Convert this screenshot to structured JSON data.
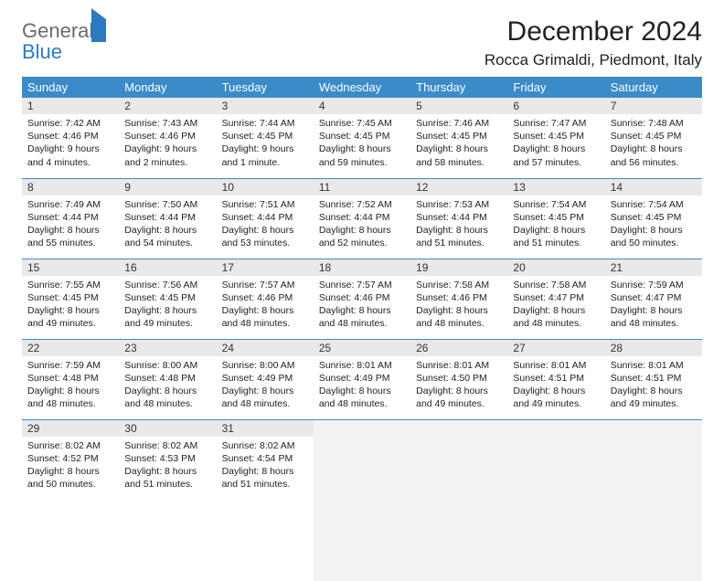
{
  "brand": {
    "word1": "General",
    "word2": "Blue"
  },
  "title": "December 2024",
  "location": "Rocca Grimaldi, Piedmont, Italy",
  "colors": {
    "header_bg": "#3b8bc8",
    "header_fg": "#ffffff",
    "daynum_bg": "#e9e9e9",
    "row_divider": "#3b8bc8",
    "logo_gray": "#6b6b6b",
    "logo_blue": "#2d7ac0",
    "page_bg": "#ffffff"
  },
  "typography": {
    "title_fontsize": 30,
    "location_fontsize": 17,
    "weekday_fontsize": 13,
    "daynum_fontsize": 12,
    "body_fontsize": 10.5
  },
  "weekdays": [
    "Sunday",
    "Monday",
    "Tuesday",
    "Wednesday",
    "Thursday",
    "Friday",
    "Saturday"
  ],
  "weeks": [
    [
      {
        "n": "1",
        "sr": "Sunrise: 7:42 AM",
        "ss": "Sunset: 4:46 PM",
        "dl": "Daylight: 9 hours and 4 minutes."
      },
      {
        "n": "2",
        "sr": "Sunrise: 7:43 AM",
        "ss": "Sunset: 4:46 PM",
        "dl": "Daylight: 9 hours and 2 minutes."
      },
      {
        "n": "3",
        "sr": "Sunrise: 7:44 AM",
        "ss": "Sunset: 4:45 PM",
        "dl": "Daylight: 9 hours and 1 minute."
      },
      {
        "n": "4",
        "sr": "Sunrise: 7:45 AM",
        "ss": "Sunset: 4:45 PM",
        "dl": "Daylight: 8 hours and 59 minutes."
      },
      {
        "n": "5",
        "sr": "Sunrise: 7:46 AM",
        "ss": "Sunset: 4:45 PM",
        "dl": "Daylight: 8 hours and 58 minutes."
      },
      {
        "n": "6",
        "sr": "Sunrise: 7:47 AM",
        "ss": "Sunset: 4:45 PM",
        "dl": "Daylight: 8 hours and 57 minutes."
      },
      {
        "n": "7",
        "sr": "Sunrise: 7:48 AM",
        "ss": "Sunset: 4:45 PM",
        "dl": "Daylight: 8 hours and 56 minutes."
      }
    ],
    [
      {
        "n": "8",
        "sr": "Sunrise: 7:49 AM",
        "ss": "Sunset: 4:44 PM",
        "dl": "Daylight: 8 hours and 55 minutes."
      },
      {
        "n": "9",
        "sr": "Sunrise: 7:50 AM",
        "ss": "Sunset: 4:44 PM",
        "dl": "Daylight: 8 hours and 54 minutes."
      },
      {
        "n": "10",
        "sr": "Sunrise: 7:51 AM",
        "ss": "Sunset: 4:44 PM",
        "dl": "Daylight: 8 hours and 53 minutes."
      },
      {
        "n": "11",
        "sr": "Sunrise: 7:52 AM",
        "ss": "Sunset: 4:44 PM",
        "dl": "Daylight: 8 hours and 52 minutes."
      },
      {
        "n": "12",
        "sr": "Sunrise: 7:53 AM",
        "ss": "Sunset: 4:44 PM",
        "dl": "Daylight: 8 hours and 51 minutes."
      },
      {
        "n": "13",
        "sr": "Sunrise: 7:54 AM",
        "ss": "Sunset: 4:45 PM",
        "dl": "Daylight: 8 hours and 51 minutes."
      },
      {
        "n": "14",
        "sr": "Sunrise: 7:54 AM",
        "ss": "Sunset: 4:45 PM",
        "dl": "Daylight: 8 hours and 50 minutes."
      }
    ],
    [
      {
        "n": "15",
        "sr": "Sunrise: 7:55 AM",
        "ss": "Sunset: 4:45 PM",
        "dl": "Daylight: 8 hours and 49 minutes."
      },
      {
        "n": "16",
        "sr": "Sunrise: 7:56 AM",
        "ss": "Sunset: 4:45 PM",
        "dl": "Daylight: 8 hours and 49 minutes."
      },
      {
        "n": "17",
        "sr": "Sunrise: 7:57 AM",
        "ss": "Sunset: 4:46 PM",
        "dl": "Daylight: 8 hours and 48 minutes."
      },
      {
        "n": "18",
        "sr": "Sunrise: 7:57 AM",
        "ss": "Sunset: 4:46 PM",
        "dl": "Daylight: 8 hours and 48 minutes."
      },
      {
        "n": "19",
        "sr": "Sunrise: 7:58 AM",
        "ss": "Sunset: 4:46 PM",
        "dl": "Daylight: 8 hours and 48 minutes."
      },
      {
        "n": "20",
        "sr": "Sunrise: 7:58 AM",
        "ss": "Sunset: 4:47 PM",
        "dl": "Daylight: 8 hours and 48 minutes."
      },
      {
        "n": "21",
        "sr": "Sunrise: 7:59 AM",
        "ss": "Sunset: 4:47 PM",
        "dl": "Daylight: 8 hours and 48 minutes."
      }
    ],
    [
      {
        "n": "22",
        "sr": "Sunrise: 7:59 AM",
        "ss": "Sunset: 4:48 PM",
        "dl": "Daylight: 8 hours and 48 minutes."
      },
      {
        "n": "23",
        "sr": "Sunrise: 8:00 AM",
        "ss": "Sunset: 4:48 PM",
        "dl": "Daylight: 8 hours and 48 minutes."
      },
      {
        "n": "24",
        "sr": "Sunrise: 8:00 AM",
        "ss": "Sunset: 4:49 PM",
        "dl": "Daylight: 8 hours and 48 minutes."
      },
      {
        "n": "25",
        "sr": "Sunrise: 8:01 AM",
        "ss": "Sunset: 4:49 PM",
        "dl": "Daylight: 8 hours and 48 minutes."
      },
      {
        "n": "26",
        "sr": "Sunrise: 8:01 AM",
        "ss": "Sunset: 4:50 PM",
        "dl": "Daylight: 8 hours and 49 minutes."
      },
      {
        "n": "27",
        "sr": "Sunrise: 8:01 AM",
        "ss": "Sunset: 4:51 PM",
        "dl": "Daylight: 8 hours and 49 minutes."
      },
      {
        "n": "28",
        "sr": "Sunrise: 8:01 AM",
        "ss": "Sunset: 4:51 PM",
        "dl": "Daylight: 8 hours and 49 minutes."
      }
    ],
    [
      {
        "n": "29",
        "sr": "Sunrise: 8:02 AM",
        "ss": "Sunset: 4:52 PM",
        "dl": "Daylight: 8 hours and 50 minutes."
      },
      {
        "n": "30",
        "sr": "Sunrise: 8:02 AM",
        "ss": "Sunset: 4:53 PM",
        "dl": "Daylight: 8 hours and 51 minutes."
      },
      {
        "n": "31",
        "sr": "Sunrise: 8:02 AM",
        "ss": "Sunset: 4:54 PM",
        "dl": "Daylight: 8 hours and 51 minutes."
      },
      {
        "empty": true
      },
      {
        "empty": true
      },
      {
        "empty": true
      },
      {
        "empty": true
      }
    ]
  ]
}
